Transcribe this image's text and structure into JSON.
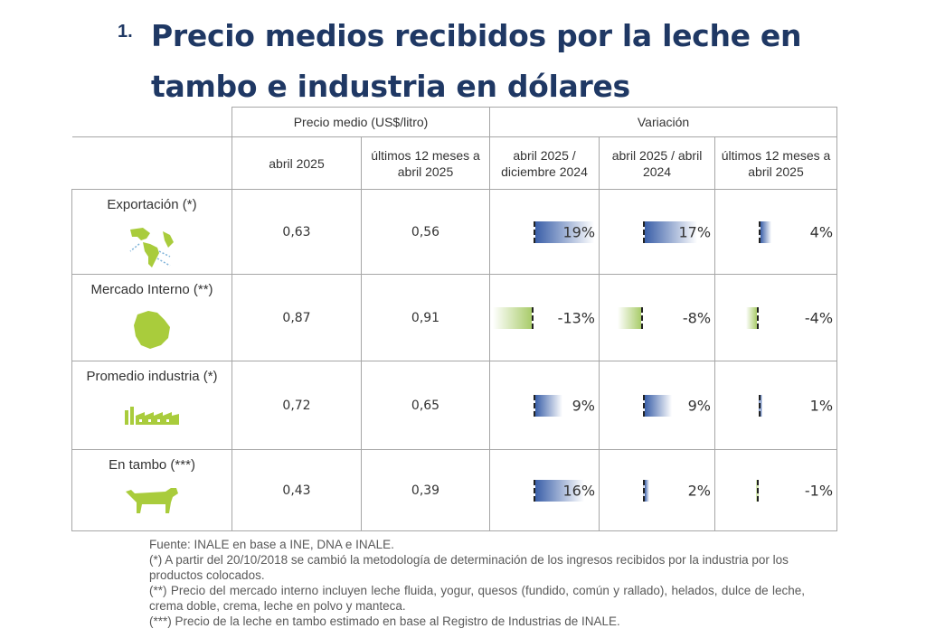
{
  "title": {
    "number": "1.",
    "text": "Precio medios recibidos por la leche en tambo e industria en dólares"
  },
  "table": {
    "group_headers": {
      "price": "Precio medio (US$/litro)",
      "variation": "Variación"
    },
    "sub_headers": {
      "col1": "abril 2025",
      "col2": "últimos 12 meses a abril 2025",
      "col3": "abril 2025 / diciembre 2024",
      "col4": "abril 2025 / abril 2024",
      "col5": "últimos 12 meses a abril 2025"
    },
    "rows": [
      {
        "label": "Exportación (*)",
        "icon": "americas-map-icon",
        "price_april": "0,63",
        "price_12m": "0,56",
        "var_dec": "19%",
        "var_dec_value": 19,
        "var_year": "17%",
        "var_year_value": 17,
        "var_12m": "4%",
        "var_12m_value": 4
      },
      {
        "label": "Mercado Interno (**)",
        "icon": "uruguay-map-icon",
        "price_april": "0,87",
        "price_12m": "0,91",
        "var_dec": "-13%",
        "var_dec_value": -13,
        "var_year": "-8%",
        "var_year_value": -8,
        "var_12m": "-4%",
        "var_12m_value": -4
      },
      {
        "label": "Promedio industria (*)",
        "icon": "factory-icon",
        "price_april": "0,72",
        "price_12m": "0,65",
        "var_dec": "9%",
        "var_dec_value": 9,
        "var_year": "9%",
        "var_year_value": 9,
        "var_12m": "1%",
        "var_12m_value": 1
      },
      {
        "label": "En tambo (***)",
        "icon": "cow-icon",
        "price_april": "0,43",
        "price_12m": "0,39",
        "var_dec": "16%",
        "var_dec_value": 16,
        "var_year": "2%",
        "var_year_value": 2,
        "var_12m": "-1%",
        "var_12m_value": -1
      }
    ]
  },
  "footnotes": {
    "source": "Fuente: INALE en base a INE, DNA e INALE.",
    "note1": "(*) A partir del 20/10/2018 se cambió la metodología de determinación de los ingresos recibidos por la industria por los productos colocados.",
    "note2": "(**) Precio del mercado interno incluyen leche fluida, yogur, quesos (fundido, común y rallado), helados, dulce de leche, crema doble, crema, leche en polvo y manteca.",
    "note3": "(***) Precio de la leche en tambo estimado en base al Registro de Industrias de INALE."
  },
  "colors": {
    "title": "#1f3864",
    "price": "#2e75b6",
    "positive_bar": "#3a5fa8",
    "negative_bar": "#a9cc6a",
    "icon_green": "#a9cc3c"
  }
}
